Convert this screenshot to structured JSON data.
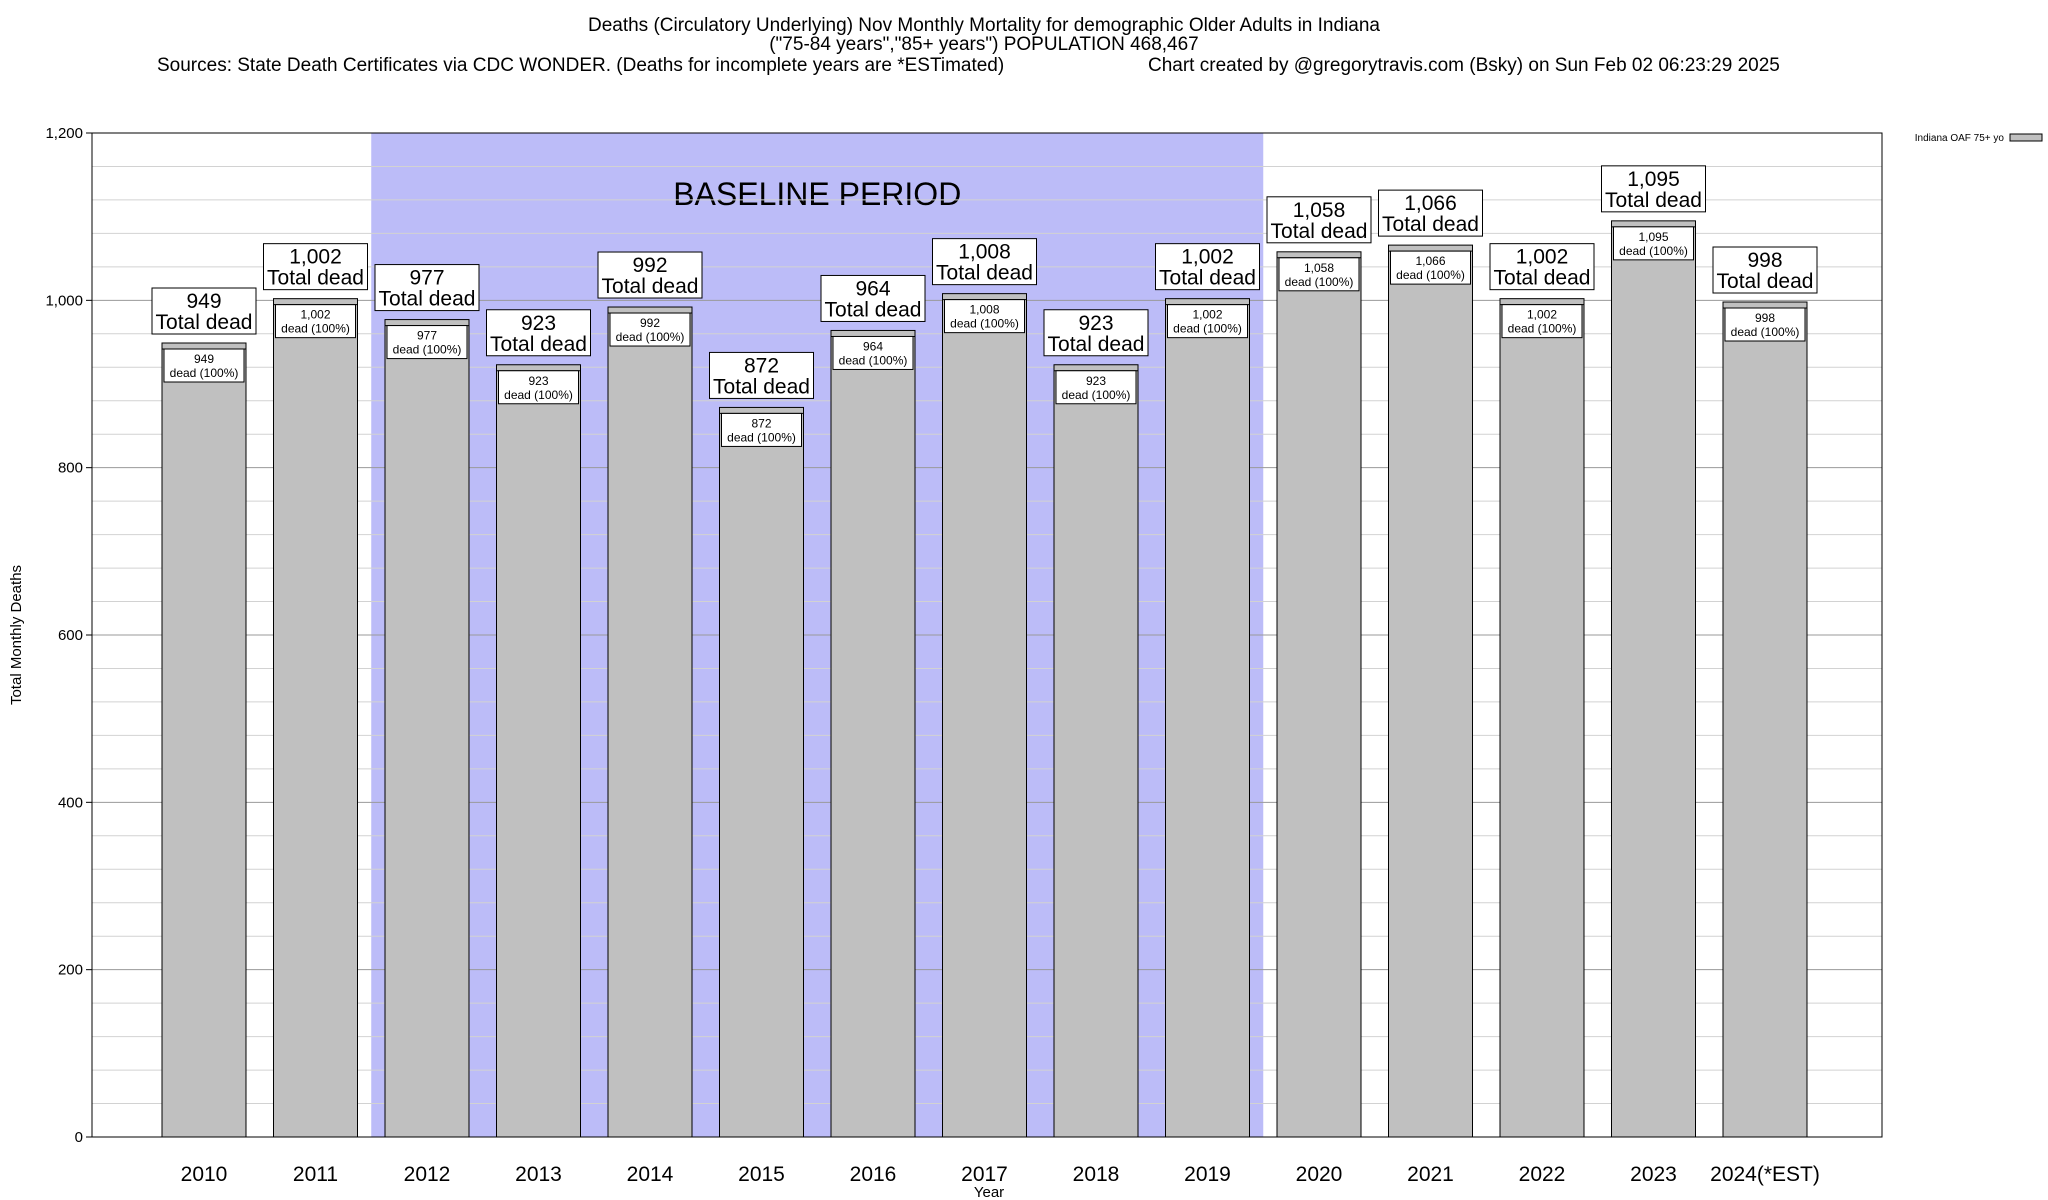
{
  "header": {
    "title": "Deaths (Circulatory Underlying) Nov Monthly Mortality for demographic Older Adults in Indiana",
    "subtitle": "(\"75-84 years\",\"85+ years\") POPULATION 468,467",
    "sources": "Sources: State Death Certificates via CDC WONDER. (Deaths for incomplete years are *ESTimated)",
    "credit": "Chart created by @gregorytravis.com (Bsky) on Sun Feb 02 06:23:29 2025"
  },
  "chart_data": {
    "type": "bar",
    "xlabel": "Year",
    "ylabel": "Total Monthly Deaths",
    "ylim": [
      0,
      1200
    ],
    "yticks": [
      0,
      200,
      400,
      600,
      800,
      1000,
      1200
    ],
    "ytick_labels": [
      "0",
      "200",
      "400",
      "600",
      "800",
      "1,000",
      "1,200"
    ],
    "y_minor_step": 40,
    "grid": true,
    "legend_position": "top-right",
    "categories": [
      "2010",
      "2011",
      "2012",
      "2013",
      "2014",
      "2015",
      "2016",
      "2017",
      "2018",
      "2019",
      "2020",
      "2021",
      "2022",
      "2023",
      "2024(*EST)"
    ],
    "series": [
      {
        "name": "Indiana OAF 75+ yo",
        "color": "#c0c0c0",
        "values": [
          949,
          1002,
          977,
          923,
          992,
          872,
          964,
          1008,
          923,
          1002,
          1058,
          1066,
          1002,
          1095,
          998
        ]
      }
    ],
    "total_labels": [
      "949",
      "1,002",
      "977",
      "923",
      "992",
      "872",
      "964",
      "1,008",
      "923",
      "1,002",
      "1,058",
      "1,066",
      "1,002",
      "1,095",
      "998"
    ],
    "total_suffix": "Total dead",
    "inner_suffix": "dead (100%)",
    "baseline": {
      "label": "BASELINE PERIOD",
      "start": "2012",
      "end": "2019",
      "color": "#bcbcf8"
    }
  }
}
